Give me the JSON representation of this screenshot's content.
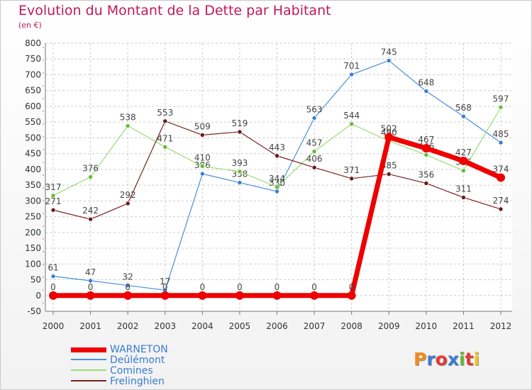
{
  "title": "Evolution du Montant de la Dette par Habitant",
  "subtitle": "(en €)",
  "logo": {
    "text": "Proxiti",
    "colors": [
      "#f28c1e",
      "#3a7cd2",
      "#e53935",
      "#3a7cd2",
      "#66bb33",
      "#e53935",
      "#f2c21e"
    ]
  },
  "chart_data": {
    "type": "line",
    "x": [
      "2000",
      "2001",
      "2002",
      "2003",
      "2004",
      "2005",
      "2006",
      "2007",
      "2008",
      "2009",
      "2010",
      "2011",
      "2012"
    ],
    "ylim": [
      -50,
      800
    ],
    "yticks": [
      "-50",
      "0",
      "50",
      "100",
      "150",
      "200",
      "250",
      "300",
      "350",
      "400",
      "450",
      "500",
      "550",
      "600",
      "650",
      "700",
      "750",
      "800"
    ],
    "grid": true,
    "legend_position": "bottom-left",
    "series": [
      {
        "name": "Deûlémont",
        "color": "#4a90d9",
        "marker": "#3a7cd2",
        "values": [
          61,
          47,
          32,
          17,
          386,
          358,
          330,
          563,
          701,
          745,
          648,
          568,
          485
        ],
        "labels": [
          "61",
          "47",
          "32",
          "17",
          "386",
          "358",
          "330",
          "563",
          "701",
          "745",
          "648",
          "568",
          "485"
        ]
      },
      {
        "name": "Comines",
        "color": "#99dd77",
        "marker": "#66bb33",
        "values": [
          317,
          376,
          538,
          471,
          410,
          393,
          344,
          457,
          544,
          490,
          446,
          396,
          597
        ],
        "labels": [
          "317",
          "376",
          "538",
          "471",
          "410",
          "393",
          "344",
          "457",
          "544",
          "490",
          "446",
          "396",
          "597"
        ]
      },
      {
        "name": "Frelinghien",
        "color": "#7a2020",
        "marker": "#6a1a1a",
        "values": [
          271,
          242,
          292,
          553,
          509,
          519,
          443,
          406,
          371,
          385,
          356,
          311,
          274
        ],
        "labels": [
          "271",
          "242",
          "292",
          "553",
          "509",
          "519",
          "443",
          "406",
          "371",
          "385",
          "356",
          "311",
          "274"
        ]
      },
      {
        "name": "WARNETON",
        "color": "#ee0000",
        "marker": "#ee0000",
        "values": [
          0,
          0,
          0,
          0,
          0,
          0,
          0,
          0,
          0,
          502,
          467,
          427,
          374
        ],
        "labels": [
          "0",
          "0",
          "0",
          "0",
          "0",
          "0",
          "0",
          "0",
          "0",
          "502",
          "467",
          "427",
          "374"
        ]
      }
    ]
  }
}
